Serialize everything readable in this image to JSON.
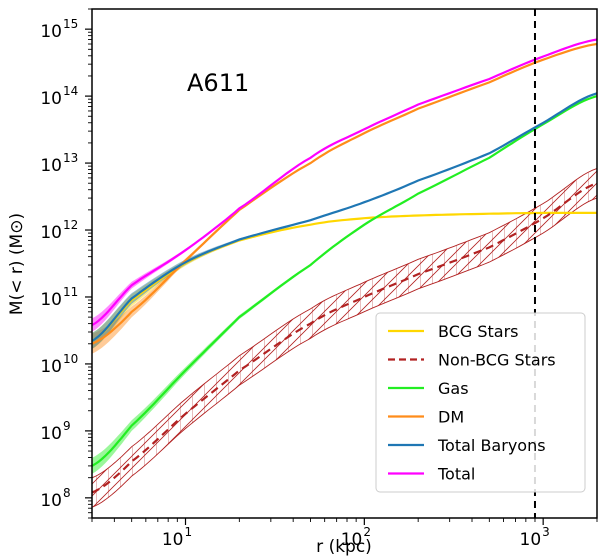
{
  "chart_data": {
    "type": "line",
    "annotation": "A611",
    "xlabel": "r (kpc)",
    "ylabel": "M(< r) (M⊙)",
    "xscale": "log",
    "yscale": "log",
    "xlim": [
      3,
      2000
    ],
    "ylim": [
      50000000.0,
      2000000000000000.0
    ],
    "grid": false,
    "legend_position": "lower-right",
    "x_ticks": [
      {
        "base": "10",
        "exp": "1",
        "value": 10
      },
      {
        "base": "10",
        "exp": "2",
        "value": 100
      },
      {
        "base": "10",
        "exp": "3",
        "value": 1000
      }
    ],
    "y_ticks": [
      {
        "base": "10",
        "exp": "8",
        "value": 100000000.0
      },
      {
        "base": "10",
        "exp": "9",
        "value": 1000000000.0
      },
      {
        "base": "10",
        "exp": "10",
        "value": 10000000000.0
      },
      {
        "base": "10",
        "exp": "11",
        "value": 100000000000.0
      },
      {
        "base": "10",
        "exp": "12",
        "value": 1000000000000.0
      },
      {
        "base": "10",
        "exp": "13",
        "value": 10000000000000.0
      },
      {
        "base": "10",
        "exp": "14",
        "value": 100000000000000.0
      },
      {
        "base": "10",
        "exp": "15",
        "value": 1000000000000000.0
      }
    ],
    "vline": {
      "x": 900,
      "style": "dashed",
      "color": "#000000"
    },
    "x": [
      3,
      5,
      10,
      20,
      50,
      100,
      200,
      500,
      1000,
      2000
    ],
    "series": [
      {
        "name": "BCG Stars",
        "color": "#ffd700",
        "style": "solid",
        "values": [
          22000000000.0,
          90000000000.0,
          320000000000.0,
          700000000000.0,
          1200000000000.0,
          1500000000000.0,
          1650000000000.0,
          1750000000000.0,
          1800000000000.0,
          1800000000000.0
        ],
        "band": [
          0.12,
          0.09,
          0.04,
          0.02,
          0.01,
          0.01,
          0.01,
          0.01,
          0.01,
          0.01
        ]
      },
      {
        "name": "Non-BCG Stars",
        "color": "#b22222",
        "style": "dashed",
        "band_style": "hatch",
        "values": [
          120000000.0,
          350000000.0,
          1800000000.0,
          8000000000.0,
          40000000000.0,
          100000000000.0,
          220000000000.0,
          550000000000.0,
          1500000000000.0,
          5000000000000.0
        ],
        "band": [
          0.22,
          0.22,
          0.22,
          0.22,
          0.22,
          0.22,
          0.22,
          0.22,
          0.22,
          0.22
        ]
      },
      {
        "name": "Gas",
        "color": "#22ee22",
        "style": "solid",
        "values": [
          300000000.0,
          1200000000.0,
          8000000000.0,
          50000000000.0,
          300000000000.0,
          1200000000000.0,
          3500000000000.0,
          12000000000000.0,
          38000000000000.0,
          100000000000000.0
        ],
        "band": [
          0.12,
          0.08,
          0.05,
          0.03,
          0.02,
          0.02,
          0.01,
          0.01,
          0.01,
          0.01
        ]
      },
      {
        "name": "DM",
        "color": "#ff8c1a",
        "style": "solid",
        "values": [
          20000000000.0,
          60000000000.0,
          350000000000.0,
          2000000000000.0,
          10000000000000.0,
          28000000000000.0,
          65000000000000.0,
          160000000000000.0,
          350000000000000.0,
          600000000000000.0
        ],
        "band": [
          0.15,
          0.08,
          0.03,
          0.02,
          0.01,
          0.01,
          0.01,
          0.01,
          0.01,
          0.01
        ]
      },
      {
        "name": "Total Baryons",
        "color": "#1f77b4",
        "style": "solid",
        "values": [
          22000000000.0,
          95000000000.0,
          330000000000.0,
          720000000000.0,
          1400000000000.0,
          2600000000000.0,
          5500000000000.0,
          14000000000000.0,
          40000000000000.0,
          110000000000000.0
        ],
        "band": [
          0.12,
          0.08,
          0.04,
          0.02,
          0.01,
          0.01,
          0.01,
          0.01,
          0.01,
          0.01
        ]
      },
      {
        "name": "Total",
        "color": "#ff00ff",
        "style": "solid",
        "values": [
          38000000000.0,
          150000000000.0,
          500000000000.0,
          2100000000000.0,
          12000000000000.0,
          32000000000000.0,
          75000000000000.0,
          180000000000000.0,
          390000000000000.0,
          700000000000000.0
        ],
        "band": [
          0.1,
          0.05,
          0.02,
          0.01,
          0.01,
          0.01,
          0.01,
          0.01,
          0.01,
          0.01
        ]
      }
    ]
  }
}
